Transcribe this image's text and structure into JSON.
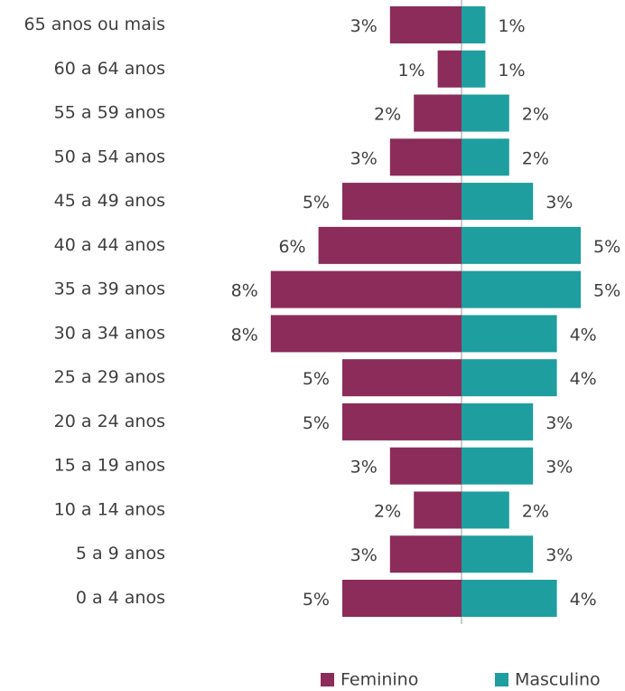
{
  "chart_data": {
    "type": "pyramid",
    "categories": [
      "65 anos ou mais",
      "60 a 64 anos",
      "55 a 59 anos",
      "50 a 54 anos",
      "45 a 49 anos",
      "40 a 44 anos",
      "35 a 39 anos",
      "30 a 34 anos",
      "25 a 29 anos",
      "20 a 24 anos",
      "15 a 19 anos",
      "10 a 14 anos",
      "5 a 9 anos",
      "0 a 4 anos"
    ],
    "series": [
      {
        "name": "Feminino",
        "color": "#8b2c5a",
        "side": "left",
        "values": [
          3,
          1,
          2,
          3,
          5,
          6,
          8,
          8,
          5,
          5,
          3,
          2,
          3,
          5
        ],
        "value_labels": [
          "3%",
          "1%",
          "2%",
          "3%",
          "5%",
          "6%",
          "8%",
          "8%",
          "5%",
          "5%",
          "3%",
          "2%",
          "3%",
          "5%"
        ]
      },
      {
        "name": "Masculino",
        "color": "#1f9ea0",
        "side": "right",
        "values": [
          1,
          1,
          2,
          2,
          3,
          5,
          5,
          4,
          4,
          3,
          3,
          2,
          3,
          4
        ],
        "value_labels": [
          "1%",
          "1%",
          "2%",
          "2%",
          "3%",
          "5%",
          "5%",
          "4%",
          "4%",
          "3%",
          "3%",
          "2%",
          "3%",
          "4%"
        ]
      }
    ],
    "legend": "bottom-right"
  }
}
